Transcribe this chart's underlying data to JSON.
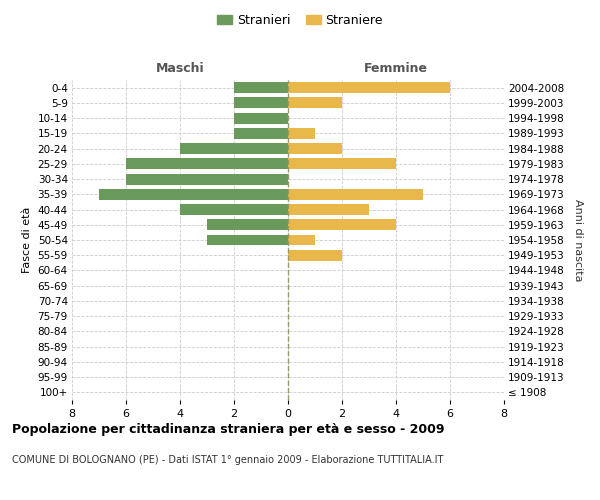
{
  "age_groups": [
    "100+",
    "95-99",
    "90-94",
    "85-89",
    "80-84",
    "75-79",
    "70-74",
    "65-69",
    "60-64",
    "55-59",
    "50-54",
    "45-49",
    "40-44",
    "35-39",
    "30-34",
    "25-29",
    "20-24",
    "15-19",
    "10-14",
    "5-9",
    "0-4"
  ],
  "birth_years": [
    "≤ 1908",
    "1909-1913",
    "1914-1918",
    "1919-1923",
    "1924-1928",
    "1929-1933",
    "1934-1938",
    "1939-1943",
    "1944-1948",
    "1949-1953",
    "1954-1958",
    "1959-1963",
    "1964-1968",
    "1969-1973",
    "1974-1978",
    "1979-1983",
    "1984-1988",
    "1989-1993",
    "1994-1998",
    "1999-2003",
    "2004-2008"
  ],
  "males": [
    0,
    0,
    0,
    0,
    0,
    0,
    0,
    0,
    0,
    0,
    3,
    3,
    4,
    7,
    6,
    6,
    4,
    2,
    2,
    2,
    2
  ],
  "females": [
    0,
    0,
    0,
    0,
    0,
    0,
    0,
    0,
    0,
    2,
    1,
    4,
    3,
    5,
    0,
    4,
    2,
    1,
    0,
    2,
    6
  ],
  "male_color": "#6a9a5b",
  "female_color": "#e8b84b",
  "title": "Popolazione per cittadinanza straniera per età e sesso - 2009",
  "subtitle": "COMUNE DI BOLOGNANO (PE) - Dati ISTAT 1° gennaio 2009 - Elaborazione TUTTITALIA.IT",
  "xlabel_left": "Maschi",
  "xlabel_right": "Femmine",
  "ylabel_left": "Fasce di età",
  "ylabel_right": "Anni di nascita",
  "legend_male": "Stranieri",
  "legend_female": "Straniere",
  "xlim": 8,
  "background_color": "#ffffff",
  "grid_color": "#cccccc"
}
